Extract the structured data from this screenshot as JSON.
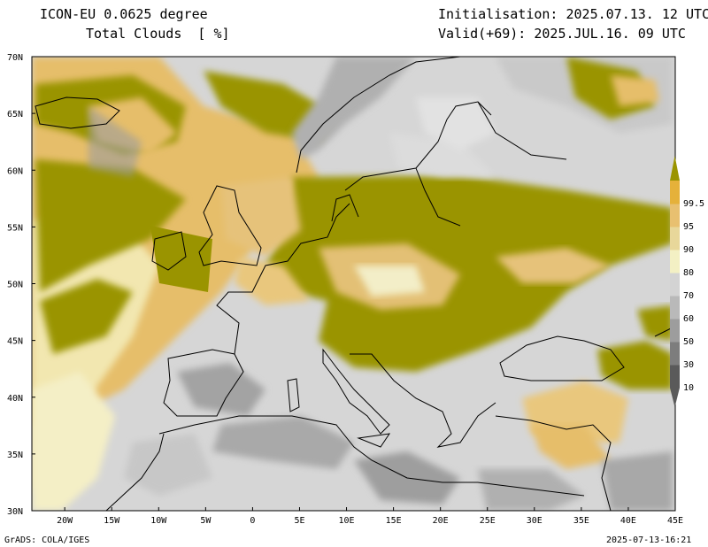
{
  "header": {
    "model": "ICON-EU 0.0625 degree",
    "variable": "Total Clouds  [ %]",
    "init": "Initialisation: 2025.07.13. 12 UTC",
    "valid": "Valid(+69): 2025.JUL.16. 09 UTC"
  },
  "footer": {
    "left": "GrADS: COLA/IGES",
    "right": "2025-07-13-16:21"
  },
  "axes": {
    "lat_labels": [
      "70N",
      "65N",
      "60N",
      "55N",
      "50N",
      "45N",
      "40N",
      "35N",
      "30N"
    ],
    "lat_values": [
      70,
      65,
      60,
      55,
      50,
      45,
      40,
      35,
      30
    ],
    "lon_labels": [
      "20W",
      "15W",
      "10W",
      "5W",
      "0",
      "5E",
      "10E",
      "15E",
      "20E",
      "25E",
      "30E",
      "35E",
      "40E",
      "45E"
    ],
    "lon_values": [
      -20,
      -15,
      -10,
      -5,
      0,
      5,
      10,
      15,
      20,
      25,
      30,
      35,
      40,
      45
    ],
    "lon_range": [
      -23.5,
      45
    ],
    "lat_range": [
      30,
      70
    ]
  },
  "colorbar": {
    "levels": [
      "10",
      "30",
      "50",
      "60",
      "70",
      "80",
      "90",
      "95",
      "99.5"
    ],
    "colors": [
      "#5a5a5a",
      "#7d7d7d",
      "#9d9d9d",
      "#b9b9b9",
      "#d3d3d3",
      "#f3f0c4",
      "#e8d79a",
      "#e8c070",
      "#e5b13a",
      "#9a9400"
    ]
  }
}
